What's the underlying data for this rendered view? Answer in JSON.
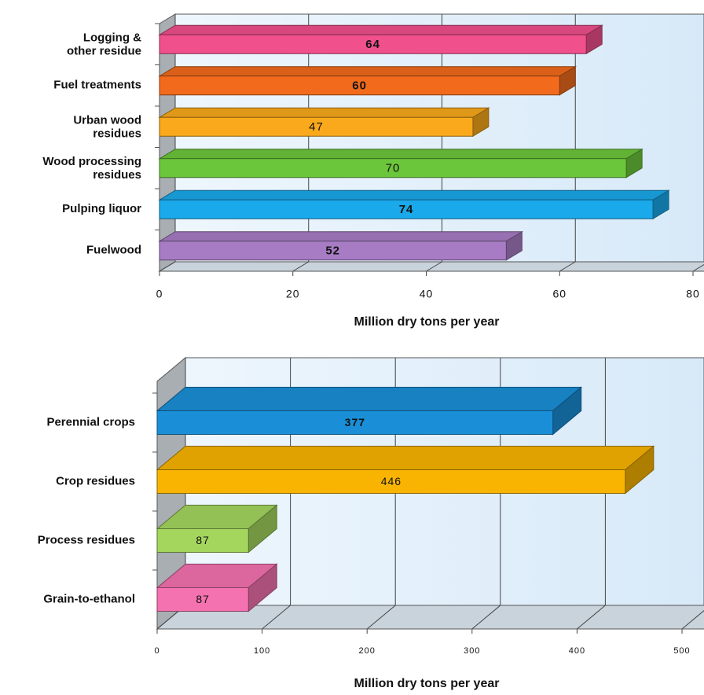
{
  "chart_data": [
    {
      "type": "bar",
      "orientation": "horizontal",
      "categories": [
        "Logging &\nother residue",
        "Fuel treatments",
        "Urban wood\nresidues",
        "Wood processing\nresidues",
        "Pulping liquor",
        "Fuelwood"
      ],
      "values": [
        64,
        60,
        47,
        70,
        74,
        52
      ],
      "colors": [
        "#f0508c",
        "#f26b1d",
        "#f9a91b",
        "#6cc63b",
        "#1aa9ea",
        "#a77cc4"
      ],
      "xlim": [
        0,
        80
      ],
      "xticks": [
        0,
        20,
        40,
        60,
        80
      ],
      "xlabel": "Million dry tons per year",
      "grid": true
    },
    {
      "type": "bar",
      "orientation": "horizontal",
      "categories": [
        "Perennial crops",
        "Crop residues",
        "Process residues",
        "Grain-to-ethanol"
      ],
      "values": [
        377,
        446,
        87,
        87
      ],
      "colors": [
        "#1a8fd8",
        "#f8b400",
        "#a4d65e",
        "#f472b0"
      ],
      "xlim": [
        0,
        500
      ],
      "xticks": [
        0,
        100,
        200,
        300,
        400,
        500
      ],
      "xlabel": "Million dry tons per year",
      "grid": true
    }
  ]
}
